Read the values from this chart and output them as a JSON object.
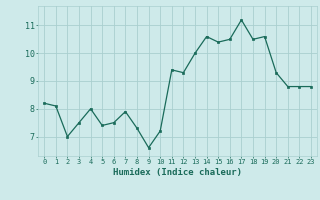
{
  "x": [
    0,
    1,
    2,
    3,
    4,
    5,
    6,
    7,
    8,
    9,
    10,
    11,
    12,
    13,
    14,
    15,
    16,
    17,
    18,
    19,
    20,
    21,
    22,
    23
  ],
  "y": [
    8.2,
    8.1,
    7.0,
    7.5,
    8.0,
    7.4,
    7.5,
    7.9,
    7.3,
    6.6,
    7.2,
    9.4,
    9.3,
    10.0,
    10.6,
    10.4,
    10.5,
    11.2,
    10.5,
    10.6,
    9.3,
    8.8,
    8.8,
    8.8
  ],
  "line_color": "#1a6b5a",
  "marker_color": "#1a6b5a",
  "bg_color": "#ceeaea",
  "grid_color": "#aacfcf",
  "xlabel": "Humidex (Indice chaleur)",
  "xlim": [
    -0.5,
    23.5
  ],
  "ylim": [
    6.3,
    11.7
  ],
  "yticks": [
    7,
    8,
    9,
    10,
    11
  ],
  "xticks": [
    0,
    1,
    2,
    3,
    4,
    5,
    6,
    7,
    8,
    9,
    10,
    11,
    12,
    13,
    14,
    15,
    16,
    17,
    18,
    19,
    20,
    21,
    22,
    23
  ],
  "tick_color": "#1a6b5a",
  "label_color": "#1a6b5a",
  "font_name": "monospace",
  "xlabel_fontsize": 6.5,
  "xtick_fontsize": 5.0,
  "ytick_fontsize": 6.0
}
